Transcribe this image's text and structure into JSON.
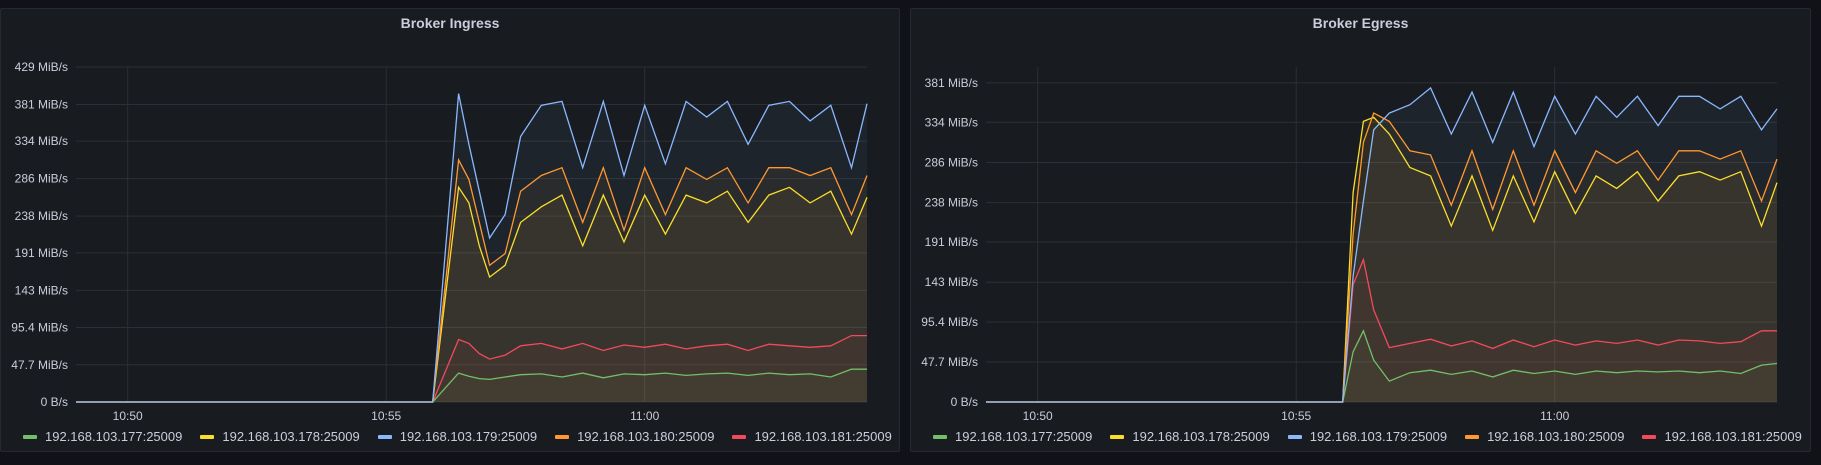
{
  "panels": [
    {
      "title": "Broker Ingress"
    },
    {
      "title": "Broker Egress"
    }
  ],
  "colors": {
    "192.168.103.177:25009": "#73bf69",
    "192.168.103.178:25009": "#fade2a",
    "192.168.103.179:25009": "#8ab8ff",
    "192.168.103.180:25009": "#ff9830",
    "192.168.103.181:25009": "#f2495c"
  },
  "chart_data": [
    {
      "type": "area",
      "title": "Broker Ingress",
      "xlabel": "",
      "ylabel": "",
      "x_ticks": [
        "10:50",
        "10:55",
        "11:00"
      ],
      "y_ticks": [
        "0 B/s",
        "47.7 MiB/s",
        "95.4 MiB/s",
        "143 MiB/s",
        "191 MiB/s",
        "238 MiB/s",
        "286 MiB/s",
        "334 MiB/s",
        "381 MiB/s",
        "429 MiB/s"
      ],
      "ylim_mib": [
        0,
        429
      ],
      "xlim_minutes_from_1050": [
        -1,
        14.3
      ],
      "x_minutes_from_1050": [
        -1,
        5.9,
        6.4,
        6.6,
        6.8,
        7.0,
        7.3,
        7.6,
        8.0,
        8.4,
        8.8,
        9.2,
        9.6,
        10.0,
        10.4,
        10.8,
        11.2,
        11.6,
        12.0,
        12.4,
        12.8,
        13.2,
        13.6,
        14.0,
        14.3
      ],
      "series": [
        {
          "name": "192.168.103.177:25009",
          "values": [
            0,
            0,
            37,
            33,
            30,
            29,
            32,
            35,
            36,
            32,
            37,
            31,
            36,
            35,
            37,
            34,
            36,
            37,
            34,
            37,
            35,
            36,
            32,
            42,
            42
          ]
        },
        {
          "name": "192.168.103.178:25009",
          "values": [
            0,
            0,
            275,
            255,
            200,
            160,
            175,
            230,
            250,
            265,
            200,
            265,
            205,
            265,
            215,
            265,
            255,
            270,
            230,
            265,
            275,
            255,
            270,
            215,
            262
          ]
        },
        {
          "name": "192.168.103.179:25009",
          "values": [
            0,
            0,
            395,
            330,
            270,
            210,
            240,
            340,
            380,
            385,
            300,
            385,
            290,
            380,
            305,
            385,
            365,
            385,
            330,
            380,
            385,
            360,
            380,
            300,
            382
          ]
        },
        {
          "name": "192.168.103.180:25009",
          "values": [
            0,
            0,
            310,
            285,
            230,
            175,
            190,
            270,
            290,
            300,
            230,
            300,
            220,
            300,
            240,
            300,
            285,
            300,
            255,
            300,
            300,
            290,
            300,
            240,
            290
          ]
        },
        {
          "name": "192.168.103.181:25009",
          "values": [
            0,
            0,
            80,
            75,
            62,
            55,
            60,
            72,
            75,
            68,
            75,
            66,
            73,
            70,
            74,
            68,
            72,
            74,
            66,
            74,
            72,
            70,
            72,
            85,
            85
          ]
        }
      ]
    },
    {
      "type": "area",
      "title": "Broker Egress",
      "xlabel": "",
      "ylabel": "",
      "x_ticks": [
        "10:50",
        "10:55",
        "11:00"
      ],
      "y_ticks": [
        "0 B/s",
        "47.7 MiB/s",
        "95.4 MiB/s",
        "143 MiB/s",
        "191 MiB/s",
        "238 MiB/s",
        "286 MiB/s",
        "334 MiB/s",
        "381 MiB/s"
      ],
      "ylim_mib": [
        0,
        400
      ],
      "xlim_minutes_from_1050": [
        -1,
        14.3
      ],
      "x_minutes_from_1050": [
        -1,
        5.9,
        6.1,
        6.3,
        6.5,
        6.8,
        7.2,
        7.6,
        8.0,
        8.4,
        8.8,
        9.2,
        9.6,
        10.0,
        10.4,
        10.8,
        11.2,
        11.6,
        12.0,
        12.4,
        12.8,
        13.2,
        13.6,
        14.0,
        14.3
      ],
      "series": [
        {
          "name": "192.168.103.177:25009",
          "values": [
            0,
            0,
            60,
            85,
            50,
            25,
            35,
            38,
            33,
            37,
            30,
            38,
            34,
            37,
            33,
            37,
            35,
            37,
            36,
            37,
            35,
            37,
            34,
            44,
            46
          ]
        },
        {
          "name": "192.168.103.178:25009",
          "values": [
            0,
            0,
            250,
            335,
            340,
            320,
            280,
            270,
            210,
            270,
            205,
            270,
            215,
            275,
            225,
            270,
            255,
            275,
            240,
            270,
            275,
            265,
            275,
            210,
            262
          ]
        },
        {
          "name": "192.168.103.179:25009",
          "values": [
            0,
            0,
            150,
            240,
            325,
            345,
            355,
            375,
            320,
            370,
            310,
            370,
            305,
            365,
            320,
            365,
            340,
            365,
            330,
            365,
            365,
            350,
            365,
            325,
            350
          ]
        },
        {
          "name": "192.168.103.180:25009",
          "values": [
            0,
            0,
            200,
            310,
            345,
            335,
            300,
            295,
            235,
            300,
            230,
            300,
            235,
            300,
            250,
            300,
            285,
            300,
            265,
            300,
            300,
            290,
            300,
            240,
            290
          ]
        },
        {
          "name": "192.168.103.181:25009",
          "values": [
            0,
            0,
            140,
            170,
            110,
            65,
            70,
            75,
            67,
            73,
            64,
            74,
            66,
            74,
            68,
            73,
            70,
            74,
            68,
            74,
            73,
            70,
            72,
            85,
            85
          ]
        }
      ]
    }
  ]
}
